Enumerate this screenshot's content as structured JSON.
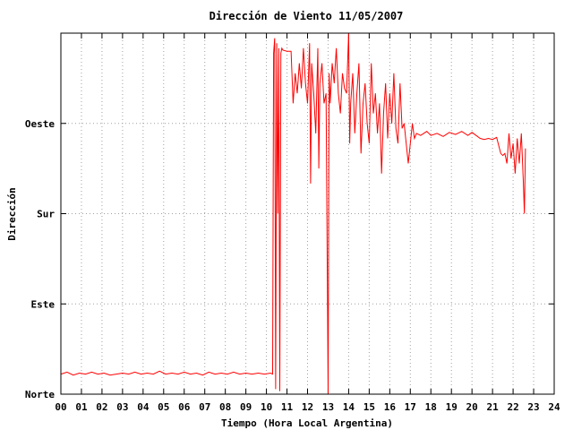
{
  "chart_data": {
    "type": "line",
    "title": "Dirección de Viento 11/05/2007",
    "xlabel": "Tiempo (Hora Local Argentina)",
    "ylabel": "Dirección",
    "xlim": [
      0,
      24
    ],
    "ylim": [
      0,
      360
    ],
    "x_ticks": [
      "00",
      "01",
      "02",
      "03",
      "04",
      "05",
      "06",
      "07",
      "08",
      "09",
      "10",
      "11",
      "12",
      "13",
      "14",
      "15",
      "16",
      "17",
      "18",
      "19",
      "20",
      "21",
      "22",
      "23",
      "24"
    ],
    "y_ticks": [
      {
        "value": 0,
        "label": "Norte"
      },
      {
        "value": 90,
        "label": "Este"
      },
      {
        "value": 180,
        "label": "Sur"
      },
      {
        "value": 270,
        "label": "Oeste"
      }
    ],
    "grid": true,
    "series": [
      {
        "color": "#ff0000",
        "points": [
          [
            0.0,
            20
          ],
          [
            0.3,
            22
          ],
          [
            0.6,
            19
          ],
          [
            0.9,
            21
          ],
          [
            1.2,
            20
          ],
          [
            1.5,
            22
          ],
          [
            1.8,
            20
          ],
          [
            2.1,
            21
          ],
          [
            2.4,
            19
          ],
          [
            2.7,
            20
          ],
          [
            3.0,
            21
          ],
          [
            3.3,
            20
          ],
          [
            3.6,
            22
          ],
          [
            3.9,
            20
          ],
          [
            4.2,
            21
          ],
          [
            4.5,
            20
          ],
          [
            4.8,
            23
          ],
          [
            5.1,
            20
          ],
          [
            5.4,
            21
          ],
          [
            5.7,
            20
          ],
          [
            6.0,
            22
          ],
          [
            6.3,
            20
          ],
          [
            6.6,
            21
          ],
          [
            6.9,
            19
          ],
          [
            7.2,
            22
          ],
          [
            7.5,
            20
          ],
          [
            7.8,
            21
          ],
          [
            8.1,
            20
          ],
          [
            8.4,
            22
          ],
          [
            8.7,
            20
          ],
          [
            9.0,
            21
          ],
          [
            9.3,
            20
          ],
          [
            9.6,
            21
          ],
          [
            9.9,
            20
          ],
          [
            10.2,
            21
          ],
          [
            10.3,
            20
          ],
          [
            10.35,
            340
          ],
          [
            10.4,
            355
          ],
          [
            10.45,
            5
          ],
          [
            10.5,
            350
          ],
          [
            10.55,
            180
          ],
          [
            10.6,
            345
          ],
          [
            10.65,
            3
          ],
          [
            10.7,
            340
          ],
          [
            10.75,
            345
          ],
          [
            10.8,
            343
          ],
          [
            11.0,
            342
          ],
          [
            11.2,
            342
          ],
          [
            11.3,
            290
          ],
          [
            11.4,
            320
          ],
          [
            11.5,
            300
          ],
          [
            11.6,
            330
          ],
          [
            11.7,
            305
          ],
          [
            11.8,
            345
          ],
          [
            11.9,
            310
          ],
          [
            12.0,
            290
          ],
          [
            12.1,
            350
          ],
          [
            12.15,
            210
          ],
          [
            12.2,
            330
          ],
          [
            12.3,
            300
          ],
          [
            12.4,
            260
          ],
          [
            12.5,
            345
          ],
          [
            12.55,
            225
          ],
          [
            12.6,
            310
          ],
          [
            12.7,
            330
          ],
          [
            12.8,
            290
          ],
          [
            12.9,
            300
          ],
          [
            13.0,
            0
          ],
          [
            13.05,
            320
          ],
          [
            13.1,
            290
          ],
          [
            13.2,
            330
          ],
          [
            13.3,
            310
          ],
          [
            13.4,
            345
          ],
          [
            13.5,
            300
          ],
          [
            13.6,
            280
          ],
          [
            13.7,
            320
          ],
          [
            13.8,
            305
          ],
          [
            13.9,
            300
          ],
          [
            14.0,
            360
          ],
          [
            14.05,
            250
          ],
          [
            14.1,
            290
          ],
          [
            14.2,
            320
          ],
          [
            14.3,
            260
          ],
          [
            14.4,
            300
          ],
          [
            14.5,
            330
          ],
          [
            14.6,
            240
          ],
          [
            14.7,
            290
          ],
          [
            14.8,
            310
          ],
          [
            14.9,
            270
          ],
          [
            15.0,
            250
          ],
          [
            15.1,
            330
          ],
          [
            15.2,
            280
          ],
          [
            15.3,
            300
          ],
          [
            15.4,
            260
          ],
          [
            15.5,
            290
          ],
          [
            15.6,
            220
          ],
          [
            15.7,
            280
          ],
          [
            15.8,
            310
          ],
          [
            15.9,
            255
          ],
          [
            16.0,
            300
          ],
          [
            16.1,
            270
          ],
          [
            16.2,
            320
          ],
          [
            16.3,
            265
          ],
          [
            16.4,
            250
          ],
          [
            16.5,
            310
          ],
          [
            16.6,
            265
          ],
          [
            16.7,
            270
          ],
          [
            16.8,
            250
          ],
          [
            16.9,
            230
          ],
          [
            17.0,
            250
          ],
          [
            17.1,
            270
          ],
          [
            17.2,
            255
          ],
          [
            17.3,
            260
          ],
          [
            17.5,
            258
          ],
          [
            17.8,
            262
          ],
          [
            18.0,
            258
          ],
          [
            18.3,
            260
          ],
          [
            18.6,
            257
          ],
          [
            18.9,
            261
          ],
          [
            19.2,
            259
          ],
          [
            19.5,
            262
          ],
          [
            19.8,
            258
          ],
          [
            20.0,
            261
          ],
          [
            20.2,
            258
          ],
          [
            20.4,
            255
          ],
          [
            20.6,
            254
          ],
          [
            20.8,
            255
          ],
          [
            21.0,
            254
          ],
          [
            21.2,
            256
          ],
          [
            21.4,
            240
          ],
          [
            21.5,
            238
          ],
          [
            21.6,
            240
          ],
          [
            21.7,
            230
          ],
          [
            21.8,
            260
          ],
          [
            21.9,
            235
          ],
          [
            22.0,
            250
          ],
          [
            22.1,
            220
          ],
          [
            22.2,
            255
          ],
          [
            22.3,
            230
          ],
          [
            22.4,
            260
          ],
          [
            22.5,
            210
          ],
          [
            22.55,
            180
          ],
          [
            22.6,
            245
          ]
        ]
      }
    ]
  }
}
